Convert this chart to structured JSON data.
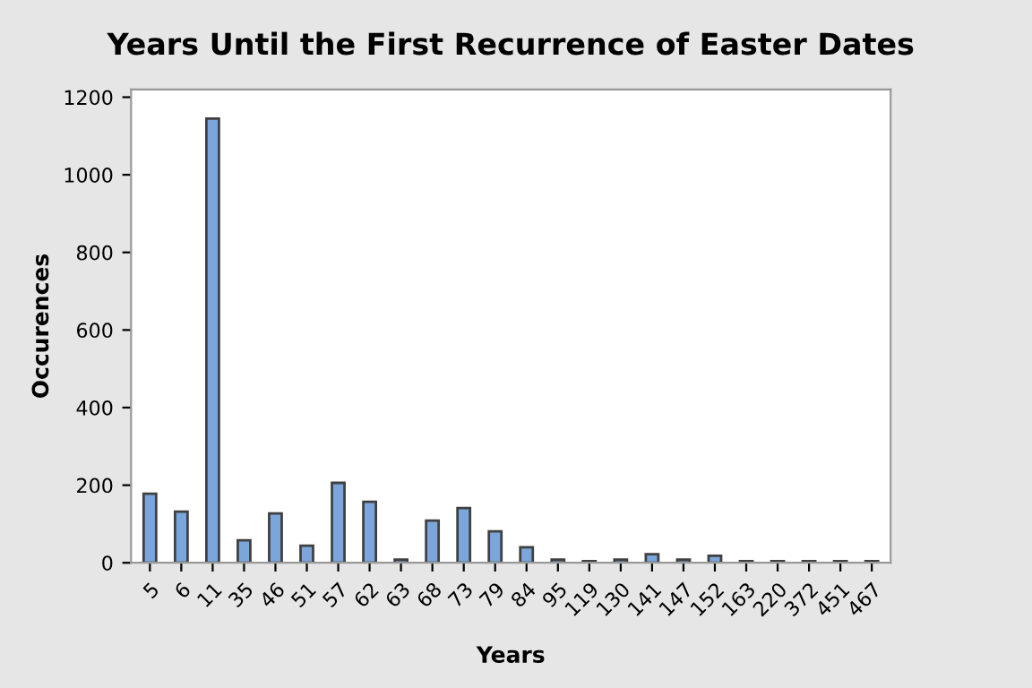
{
  "chart_data": {
    "type": "bar",
    "title": "Years Until the First Recurrence of Easter Dates",
    "xlabel": "Years",
    "ylabel": "Occurences",
    "categories": [
      "5",
      "6",
      "11",
      "35",
      "46",
      "51",
      "57",
      "62",
      "63",
      "68",
      "73",
      "79",
      "84",
      "95",
      "119",
      "130",
      "141",
      "147",
      "152",
      "163",
      "220",
      "372",
      "451",
      "467"
    ],
    "values": [
      178,
      132,
      1145,
      58,
      127,
      44,
      206,
      157,
      8,
      109,
      141,
      81,
      40,
      8,
      4,
      8,
      22,
      8,
      18,
      4,
      4,
      4,
      4,
      4
    ],
    "color": "#7ba6db",
    "ylim": [
      0,
      1220
    ],
    "yticks": [
      0,
      200,
      400,
      600,
      800,
      1000,
      1200
    ],
    "grid": false
  }
}
